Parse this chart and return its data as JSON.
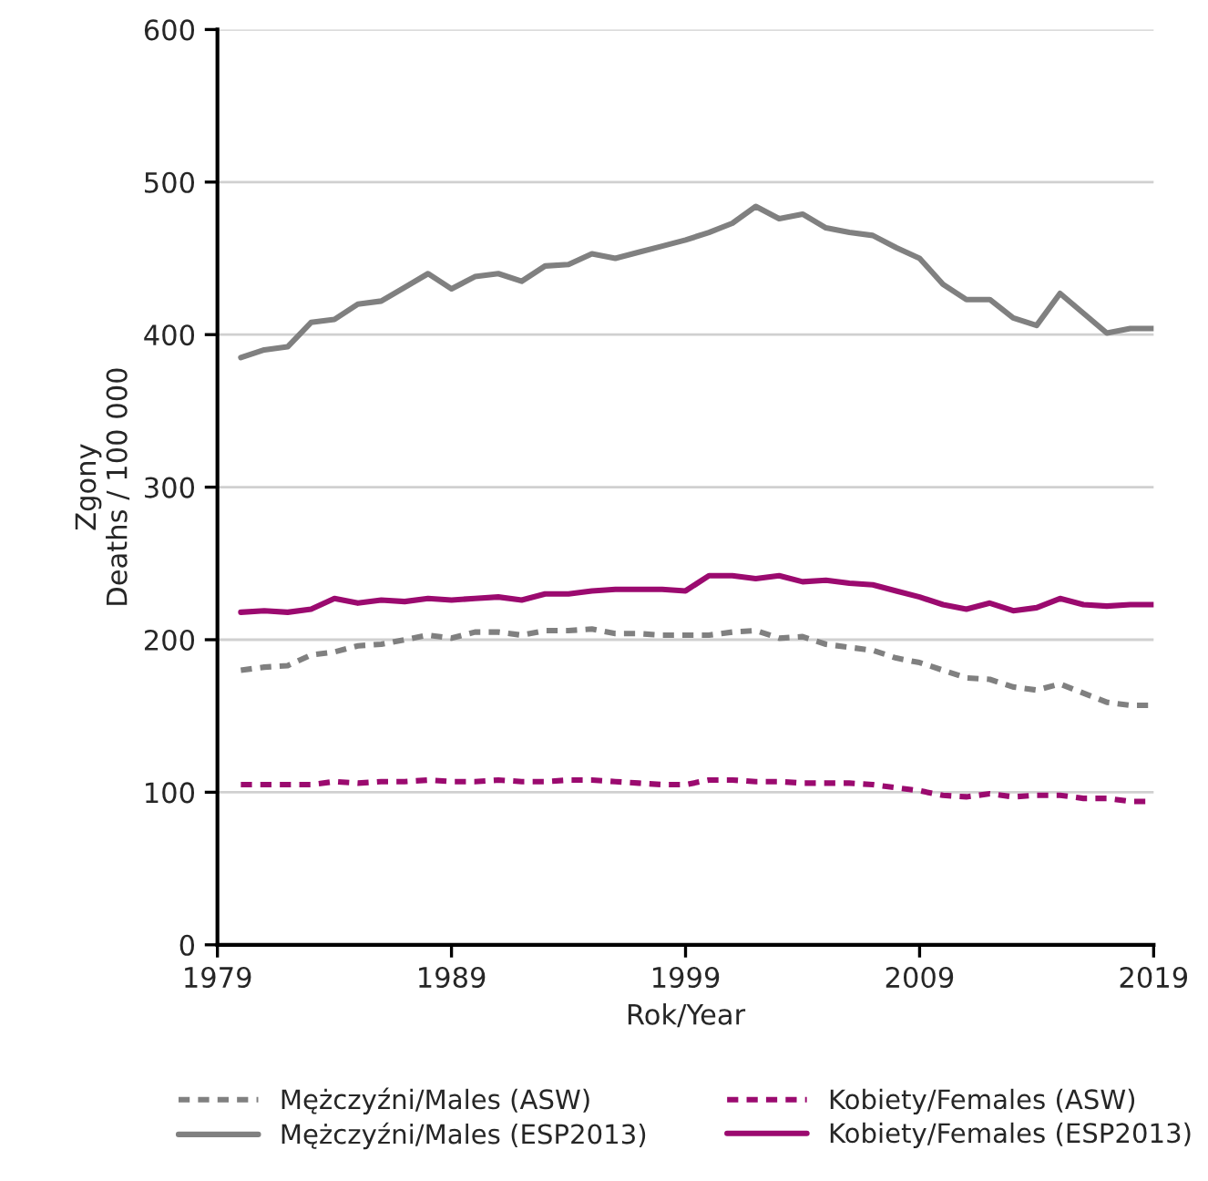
{
  "chart_data": {
    "type": "line",
    "xlabel": "Rok/Year",
    "ylabel": "Zgony\nDeaths / 100 000",
    "x": [
      1980,
      1981,
      1982,
      1983,
      1984,
      1985,
      1986,
      1987,
      1988,
      1989,
      1990,
      1991,
      1992,
      1993,
      1994,
      1995,
      1996,
      1997,
      1998,
      1999,
      2000,
      2001,
      2002,
      2003,
      2004,
      2005,
      2006,
      2007,
      2008,
      2009,
      2010,
      2011,
      2012,
      2013,
      2014,
      2015,
      2016,
      2017,
      2018,
      2019
    ],
    "series": [
      {
        "name": "Mężczyźni/Males (ASW)",
        "color": "#808080",
        "line_style": "dashed",
        "values": [
          180,
          182,
          183,
          190,
          192,
          196,
          197,
          200,
          203,
          201,
          205,
          205,
          203,
          206,
          206,
          207,
          204,
          204,
          203,
          203,
          203,
          205,
          206,
          201,
          202,
          197,
          195,
          193,
          188,
          185,
          180,
          175,
          174,
          169,
          167,
          171,
          165,
          159,
          157,
          157
        ]
      },
      {
        "name": "Mężczyźni/Males (ESP2013)",
        "color": "#808080",
        "line_style": "solid",
        "values": [
          385,
          390,
          392,
          408,
          410,
          420,
          422,
          431,
          440,
          430,
          438,
          440,
          435,
          445,
          446,
          453,
          450,
          454,
          458,
          462,
          467,
          473,
          484,
          476,
          479,
          470,
          467,
          465,
          457,
          450,
          433,
          423,
          423,
          411,
          406,
          427,
          414,
          401,
          404,
          404
        ]
      },
      {
        "name": "Kobiety/Females (ASW)",
        "color": "#9b0a6f",
        "line_style": "dashed",
        "values": [
          105,
          105,
          105,
          105,
          107,
          106,
          107,
          107,
          108,
          107,
          107,
          108,
          107,
          107,
          108,
          108,
          107,
          106,
          105,
          105,
          108,
          108,
          107,
          107,
          106,
          106,
          106,
          105,
          103,
          101,
          98,
          97,
          99,
          97,
          98,
          98,
          96,
          96,
          94,
          94
        ]
      },
      {
        "name": "Kobiety/Females (ESP2013)",
        "color": "#9b0a6f",
        "line_style": "solid",
        "values": [
          218,
          219,
          218,
          220,
          227,
          224,
          226,
          225,
          227,
          226,
          227,
          228,
          226,
          230,
          230,
          232,
          233,
          233,
          233,
          232,
          242,
          242,
          240,
          242,
          238,
          239,
          237,
          236,
          232,
          228,
          223,
          220,
          224,
          219,
          221,
          227,
          223,
          222,
          223,
          223
        ]
      }
    ],
    "xlim": [
      1979,
      2019
    ],
    "xticks": [
      1979,
      1989,
      1999,
      2009,
      2019
    ],
    "ylim": [
      0,
      600
    ],
    "yticks": [
      0,
      100,
      200,
      300,
      400,
      500,
      600
    ],
    "grid": "y",
    "legend": "bottom",
    "marker": "none"
  }
}
